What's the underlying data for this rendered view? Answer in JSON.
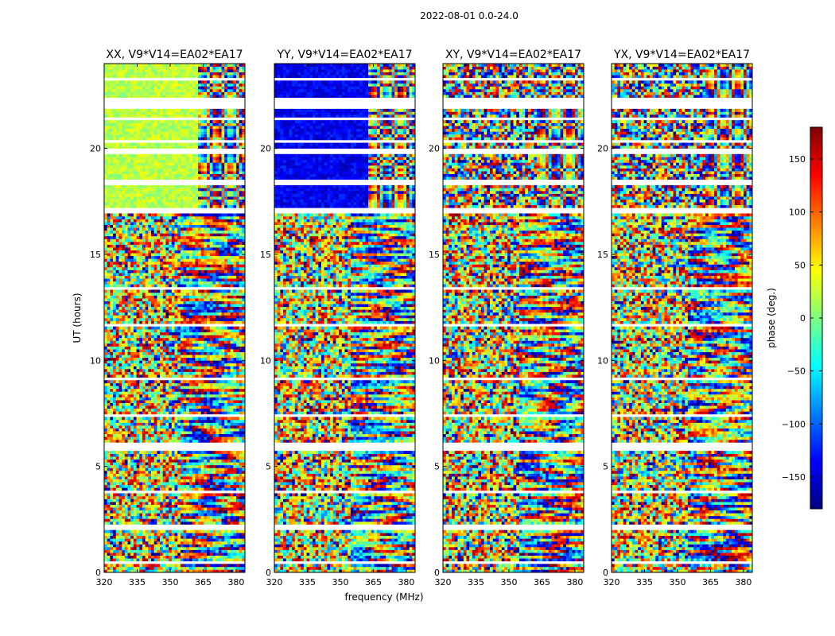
{
  "figure": {
    "suptitle": "2022-08-01 0.0-24.0",
    "xlabel": "frequency (MHz)",
    "ylabel": "UT (hours)"
  },
  "colorbar": {
    "label": "phase (deg.)",
    "range": [
      -180,
      180
    ],
    "ticks": [
      -150,
      -100,
      -50,
      0,
      50,
      100,
      150
    ],
    "tick_labels": [
      "−150",
      "−100",
      "−50",
      "0",
      "50",
      "100",
      "150"
    ],
    "colormap": [
      "#00007f",
      "#0000ff",
      "#007fff",
      "#00ffff",
      "#7fff7f",
      "#ffff00",
      "#ff7f00",
      "#ff0000",
      "#7f0000"
    ]
  },
  "chart_data": {
    "type": "heatmap",
    "x_range": [
      320,
      384
    ],
    "y_range": [
      0,
      24
    ],
    "x_ticks": [
      320,
      335,
      350,
      365,
      380
    ],
    "x_tick_labels": [
      "320",
      "335",
      "350",
      "365",
      "380"
    ],
    "y_ticks": [
      0,
      5,
      10,
      15,
      20
    ],
    "y_tick_labels": [
      "0",
      "5",
      "10",
      "15",
      "20"
    ],
    "value_quantity": "phase (deg.)",
    "value_range": [
      -180,
      180
    ],
    "flagged_gaps_hours": [
      [
        0.45,
        0.5
      ],
      [
        2.05,
        2.2
      ],
      [
        3.75,
        3.85
      ],
      [
        5.75,
        6.1
      ],
      [
        7.4,
        7.5
      ],
      [
        9.05,
        9.25
      ],
      [
        11.6,
        11.7
      ],
      [
        13.3,
        13.4
      ],
      [
        17.0,
        17.2
      ],
      [
        17.55,
        17.65
      ],
      [
        18.25,
        18.5
      ],
      [
        19.7,
        19.95
      ],
      [
        20.3,
        20.45
      ],
      [
        21.35,
        21.45
      ],
      [
        21.85,
        22.35
      ],
      [
        23.25,
        23.35
      ]
    ],
    "panels": [
      {
        "title": "XX, V9*V14=EA02*EA17",
        "pol": "XX",
        "base_phase": 20,
        "hf_phase": 90,
        "noise": 0.5,
        "seed": 3
      },
      {
        "title": "YY, V9*V14=EA02*EA17",
        "pol": "YY",
        "base_phase": -140,
        "hf_phase": 150,
        "noise": 0.5,
        "seed": 7
      },
      {
        "title": "XY, V9*V14=EA02*EA17",
        "pol": "XY",
        "base_phase": 0,
        "hf_phase": 0,
        "noise": 1.0,
        "seed": 11
      },
      {
        "title": "YX, V9*V14=EA02*EA17",
        "pol": "YX",
        "base_phase": -20,
        "hf_phase": 0,
        "noise": 1.0,
        "seed": 19
      }
    ]
  }
}
